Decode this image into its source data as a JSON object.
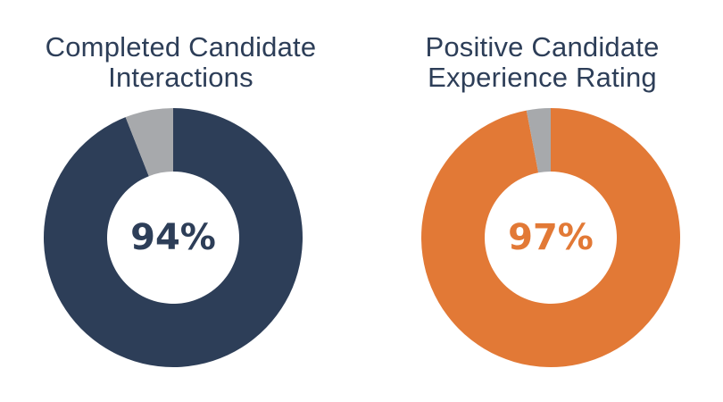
{
  "chart_data": [
    {
      "type": "pie",
      "title_lines": [
        "Completed Candidate",
        "Interactions"
      ],
      "center_label": "94%",
      "slices": [
        {
          "value": 94,
          "color": "#2d3e58"
        },
        {
          "value": 6,
          "color": "#a7a9ac"
        }
      ],
      "label_color": "#2d3e58"
    },
    {
      "type": "pie",
      "title_lines": [
        "Positive Candidate",
        "Experience Rating"
      ],
      "center_label": "97%",
      "slices": [
        {
          "value": 97,
          "color": "#e27936"
        },
        {
          "value": 3,
          "color": "#a7a9ac"
        }
      ],
      "label_color": "#e27936"
    }
  ]
}
